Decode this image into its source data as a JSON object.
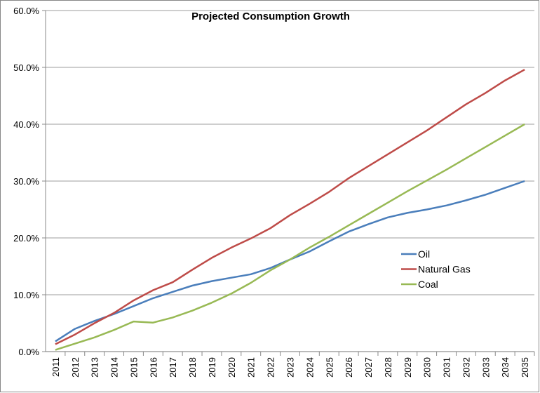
{
  "chart_data": {
    "type": "line",
    "title": "Projected Consumption Growth",
    "xlabel": "",
    "ylabel": "",
    "ylim": [
      0,
      60
    ],
    "y_ticks": [
      "0.0%",
      "10.0%",
      "20.0%",
      "30.0%",
      "40.0%",
      "50.0%",
      "60.0%"
    ],
    "grid": true,
    "legend_position": "right-middle",
    "categories": [
      "2011",
      "2012",
      "2013",
      "2014",
      "2015",
      "2016",
      "2017",
      "2018",
      "2019",
      "2020",
      "2021",
      "2022",
      "2023",
      "2024",
      "2025",
      "2026",
      "2027",
      "2028",
      "2029",
      "2030",
      "2031",
      "2032",
      "2033",
      "2034",
      "2035"
    ],
    "series": [
      {
        "name": "Oil",
        "color": "#4a7ebb",
        "values": [
          1.8,
          4.0,
          5.4,
          6.6,
          8.0,
          9.4,
          10.5,
          11.6,
          12.4,
          13.0,
          13.6,
          14.7,
          16.2,
          17.6,
          19.4,
          21.1,
          22.4,
          23.6,
          24.4,
          25.0,
          25.7,
          26.6,
          27.6,
          28.8,
          30.0
        ]
      },
      {
        "name": "Natural Gas",
        "color": "#be4b48",
        "values": [
          1.3,
          3.0,
          5.0,
          6.8,
          9.0,
          10.8,
          12.2,
          14.4,
          16.5,
          18.3,
          19.9,
          21.7,
          24.0,
          26.0,
          28.1,
          30.5,
          32.6,
          34.7,
          36.8,
          38.9,
          41.2,
          43.5,
          45.5,
          47.7,
          49.6
        ]
      },
      {
        "name": "Coal",
        "color": "#98b954",
        "values": [
          0.3,
          1.4,
          2.5,
          3.8,
          5.3,
          5.1,
          6.0,
          7.2,
          8.6,
          10.2,
          12.1,
          14.3,
          16.2,
          18.3,
          20.2,
          22.2,
          24.2,
          26.2,
          28.2,
          30.1,
          32.0,
          34.0,
          36.0,
          38.0,
          40.0
        ]
      }
    ]
  }
}
